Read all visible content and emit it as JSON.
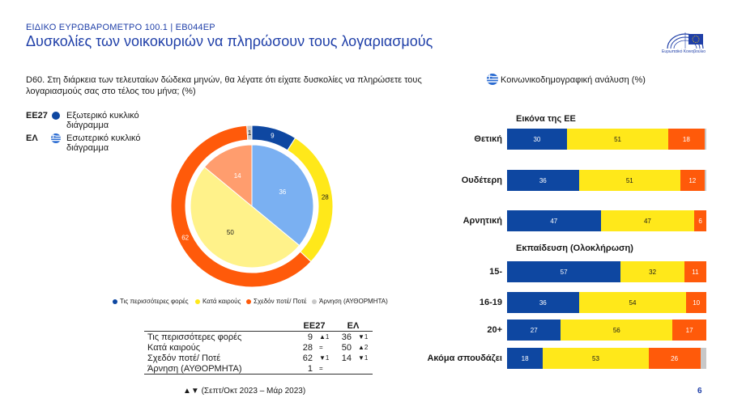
{
  "header": {
    "subtitle": "ΕΙΔΙΚΟ ΕΥΡΩΒΑΡΟΜΕΤΡΟ 100.1 | EB044EP",
    "title": "Δυσκολίες των νοικοκυριών να πληρώσουν τους λογαριασμούς",
    "logo_text": "Ευρωπαϊκό Κοινοβούλιο"
  },
  "question": "D60. Στη διάρκεια των τελευταίων δώδεκα μηνών, θα λέγατε ότι είχατε δυσκολίες να πληρώσετε τους λογαριασμούς σας στο τέλος του μήνα; (%)",
  "ring_legend": [
    {
      "code": "ΕΕ27",
      "text": "Εξωτερικό κυκλικό διάγραμμα",
      "icon": "eu-dot-icon"
    },
    {
      "code": "ΕΛ",
      "text": "Εσωτερικό κυκλικό διάγραμμα",
      "icon": "greek-flag-icon"
    }
  ],
  "colors": {
    "blue": "#0e47a1",
    "yellow": "#ffe81a",
    "orange": "#ff5a0a",
    "grey": "#c8c8c8",
    "light_blue": "#7ab0f2",
    "light_yellow": "#fff28a",
    "light_orange": "#ff9d6e",
    "title_blue": "#1f3fa8"
  },
  "chart_data": [
    {
      "type": "pie",
      "categories": [
        "Τις περισσότερες φορές",
        "Κατά καιρούς",
        "Σχεδόν ποτέ/ Ποτέ",
        "Άρνηση (ΑΥΘΟΡΜΗΤΑ)"
      ],
      "series": [
        {
          "name": "ΕΕ27",
          "values": [
            9,
            28,
            62,
            1
          ]
        },
        {
          "name": "ΕΛ",
          "values": [
            36,
            50,
            14,
            0
          ]
        }
      ],
      "legend": [
        "Τις περισσότερες φορές",
        "Κατά καιρούς",
        "Σχεδόν ποτέ/ Ποτέ",
        "Άρνηση (ΑΥΘΟΡΜΗΤΑ)"
      ]
    },
    {
      "type": "bar",
      "title": "Κοινωνικοδημογραφική ανάλυση (%)",
      "groups": [
        {
          "title": "Εικόνα της ΕΕ",
          "rows": [
            {
              "label": "Θετική",
              "values": [
                30,
                51,
                18
              ]
            },
            {
              "label": "Ουδέτερη",
              "values": [
                36,
                51,
                12
              ]
            },
            {
              "label": "Αρνητική",
              "values": [
                47,
                47,
                6
              ]
            }
          ]
        },
        {
          "title": "Εκπαίδευση (Ολοκλήρωση)",
          "rows": [
            {
              "label": "15-",
              "values": [
                57,
                32,
                11
              ]
            },
            {
              "label": "16-19",
              "values": [
                36,
                54,
                10
              ]
            },
            {
              "label": "20+",
              "values": [
                27,
                56,
                17
              ]
            },
            {
              "label": "Ακόμα σπουδάζει",
              "values": [
                18,
                53,
                26
              ]
            }
          ]
        }
      ]
    }
  ],
  "table": {
    "headers": [
      "ΕΕ27",
      "ΕΛ"
    ],
    "rows": [
      {
        "label": "Τις περισσότερες φορές",
        "eu": "9",
        "eu_chg": "▲1",
        "el": "36",
        "el_chg": "▼1"
      },
      {
        "label": "Κατά καιρούς",
        "eu": "28",
        "eu_chg": "=",
        "el": "50",
        "el_chg": "▲2"
      },
      {
        "label": "Σχεδόν ποτέ/ Ποτέ",
        "eu": "62",
        "eu_chg": "▼1",
        "el": "14",
        "el_chg": "▼1"
      },
      {
        "label": "Άρνηση (ΑΥΘΟΡΜΗΤΑ)",
        "eu": "1",
        "eu_chg": "=",
        "el": "",
        "el_chg": ""
      }
    ]
  },
  "footnote": "▲▼ (Σεπτ/Οκτ 2023 – Μάρ 2023)",
  "page_number": "6"
}
